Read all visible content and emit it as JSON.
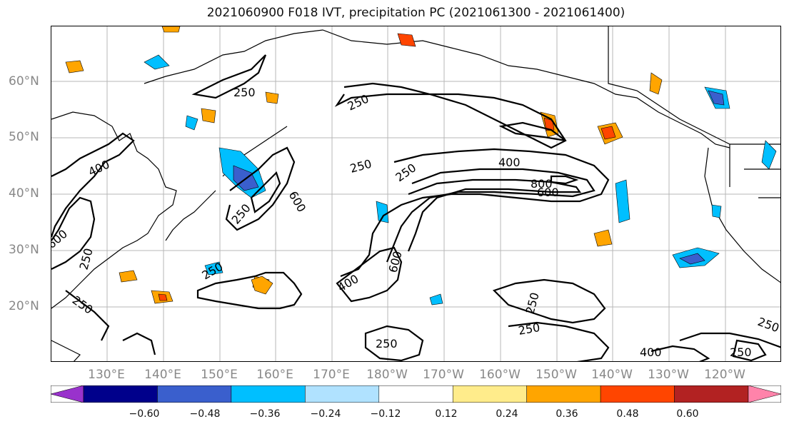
{
  "title": "2021060900 F018 IVT, precipitation PC (2021061300 - 2021061400)",
  "lat_labels": [
    "60°N",
    "50°N",
    "40°N",
    "30°N",
    "20°N"
  ],
  "lon_labels": [
    "130°E",
    "140°E",
    "150°E",
    "160°E",
    "170°E",
    "180°W",
    "170°W",
    "160°W",
    "150°W",
    "140°W",
    "130°W",
    "120°W"
  ],
  "contour_labels": [
    "250",
    "250",
    "250",
    "250",
    "400",
    "400",
    "250",
    "600",
    "600",
    "800",
    "600",
    "250",
    "250",
    "400",
    "600",
    "250",
    "250",
    "250",
    "250",
    "400",
    "250",
    "250"
  ],
  "colorbar": {
    "ticks": [
      "−0.60",
      "−0.48",
      "−0.36",
      "−0.24",
      "−0.12",
      "0.12",
      "0.24",
      "0.36",
      "0.48",
      "0.60"
    ],
    "colors": [
      "#9932cc",
      "#00008b",
      "#3a5fcd",
      "#00bfff",
      "#b0e2ff",
      "#ffffff",
      "#ffec8b",
      "#ffa500",
      "#ff4500",
      "#b22222",
      "#ff83aa"
    ]
  }
}
